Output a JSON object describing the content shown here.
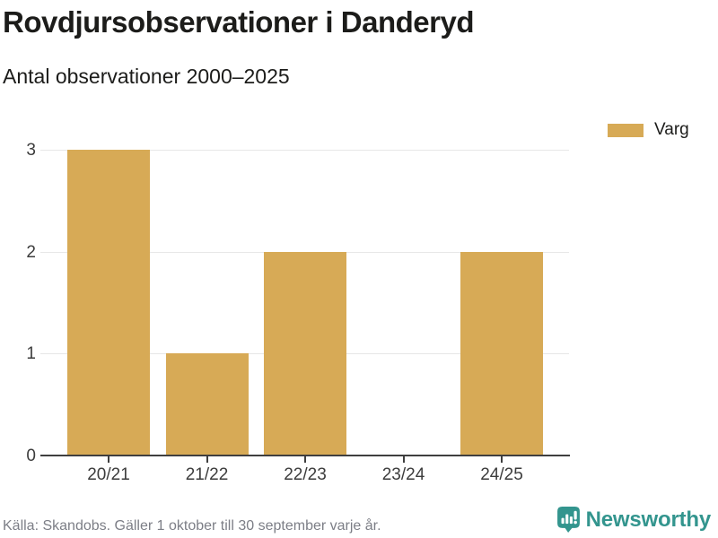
{
  "header": {
    "title": "Rovdjursobservationer i Danderyd",
    "subtitle": "Antal observationer 2000–2025"
  },
  "legend": {
    "items": [
      {
        "label": "Varg",
        "color": "#d7aa56"
      }
    ]
  },
  "chart_data": {
    "type": "bar",
    "categories": [
      "20/21",
      "21/22",
      "22/23",
      "23/24",
      "24/25"
    ],
    "series": [
      {
        "name": "Varg",
        "values": [
          3,
          1,
          2,
          0,
          2
        ],
        "color": "#d7aa56"
      }
    ],
    "title": "Rovdjursobservationer i Danderyd",
    "subtitle": "Antal observationer 2000–2025",
    "xlabel": "",
    "ylabel": "",
    "yticks": [
      0,
      1,
      2,
      3
    ],
    "ylim": [
      0,
      3
    ],
    "grid": true,
    "legend_position": "top-right"
  },
  "footer": {
    "source": "Källa: Skandobs. Gäller 1 oktober till 30 september varje år.",
    "brand": "Newsworthy"
  },
  "colors": {
    "bar": "#d7aa56",
    "axis": "#3f3f3f",
    "grid": "#e7e7e7",
    "text": "#1c1c1a",
    "tick_text": "#3c3c3c",
    "muted": "#7c7e86",
    "teal": "#33958e"
  }
}
